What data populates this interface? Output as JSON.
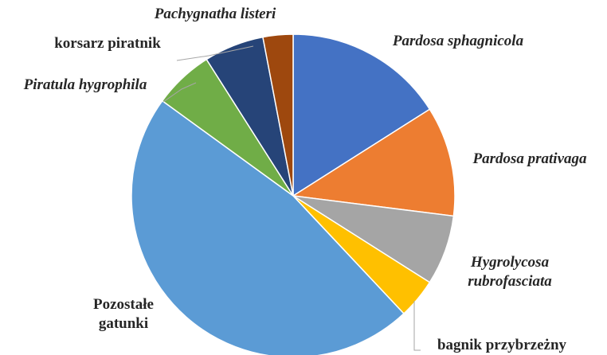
{
  "chart_data": {
    "type": "pie",
    "categories": [
      "Pardosa sphagnicola",
      "Pardosa prativaga",
      "Hygrolycosa rubrofasciata",
      "bagnik przybrzeżny",
      "Pozostałe gatunki",
      "Piratula hygrophila",
      "korsarz piratnik",
      "Pachygnatha listeri"
    ],
    "values": [
      16,
      11,
      7,
      4,
      47,
      6,
      6,
      3
    ],
    "colors": [
      "#4472c4",
      "#ed7d31",
      "#a5a5a5",
      "#ffc000",
      "#5b9bd5",
      "#70ad47",
      "#264478",
      "#9e480e"
    ]
  }
}
